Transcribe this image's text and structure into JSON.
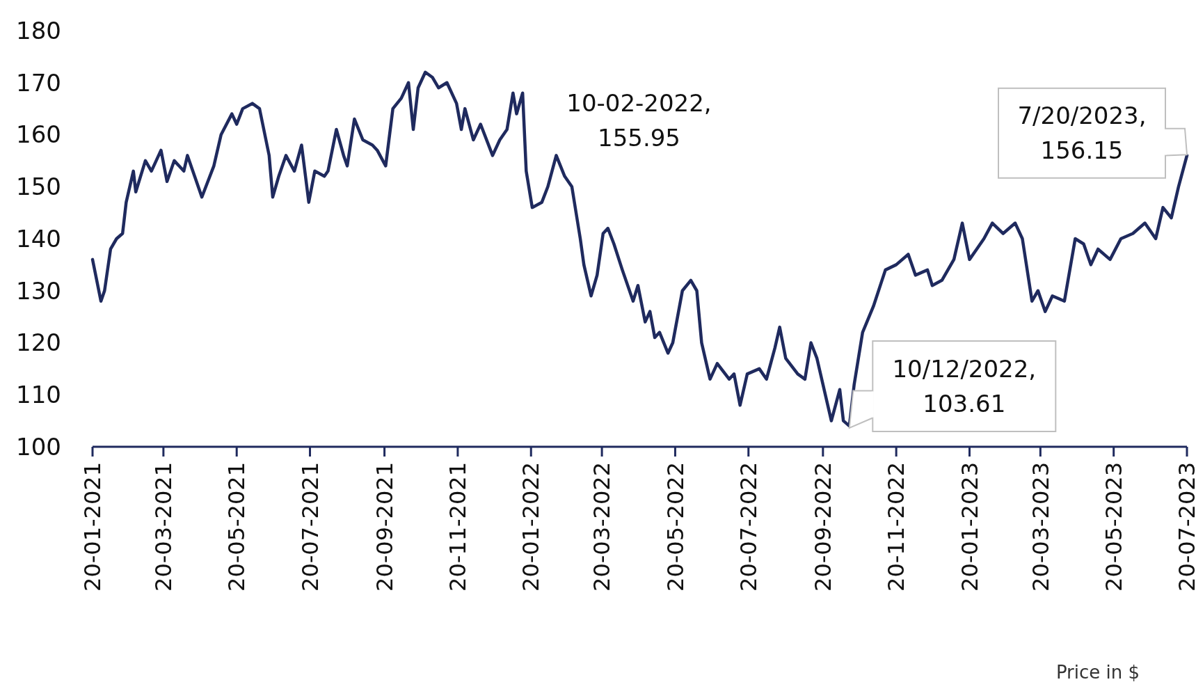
{
  "chart_data": {
    "type": "line",
    "xlim": [
      "2021-01-20",
      "2023-07-20"
    ],
    "ylim": [
      100,
      180
    ],
    "yticks": [
      100,
      110,
      120,
      130,
      140,
      150,
      160,
      170,
      180
    ],
    "xticks": [
      {
        "value": "2021-01-20",
        "label": "20-01-2021"
      },
      {
        "value": "2021-03-20",
        "label": "20-03-2021"
      },
      {
        "value": "2021-05-20",
        "label": "20-05-2021"
      },
      {
        "value": "2021-07-20",
        "label": "20-07-2021"
      },
      {
        "value": "2021-09-20",
        "label": "20-09-2021"
      },
      {
        "value": "2021-11-20",
        "label": "20-11-2021"
      },
      {
        "value": "2022-01-20",
        "label": "20-01-2022"
      },
      {
        "value": "2022-03-20",
        "label": "20-03-2022"
      },
      {
        "value": "2022-05-20",
        "label": "20-05-2022"
      },
      {
        "value": "2022-07-20",
        "label": "20-07-2022"
      },
      {
        "value": "2022-09-20",
        "label": "20-09-2022"
      },
      {
        "value": "2022-11-20",
        "label": "20-11-2022"
      },
      {
        "value": "2023-01-20",
        "label": "20-01-2023"
      },
      {
        "value": "2023-03-20",
        "label": "20-03-2023"
      },
      {
        "value": "2023-05-20",
        "label": "20-05-2023"
      },
      {
        "value": "2023-07-20",
        "label": "20-07-2023"
      }
    ],
    "grid": false,
    "marker": "none",
    "line_style": "solid",
    "x": [
      "2021-01-20",
      "2021-01-27",
      "2021-01-30",
      "2021-02-04",
      "2021-02-09",
      "2021-02-14",
      "2021-02-17",
      "2021-02-23",
      "2021-02-25",
      "2021-03-05",
      "2021-03-10",
      "2021-03-18",
      "2021-03-23",
      "2021-03-29",
      "2021-04-06",
      "2021-04-09",
      "2021-04-21",
      "2021-05-01",
      "2021-05-07",
      "2021-05-16",
      "2021-05-20",
      "2021-05-25",
      "2021-06-02",
      "2021-06-08",
      "2021-06-16",
      "2021-06-19",
      "2021-06-24",
      "2021-06-30",
      "2021-07-07",
      "2021-07-13",
      "2021-07-19",
      "2021-07-24",
      "2021-08-01",
      "2021-08-04",
      "2021-08-11",
      "2021-08-17",
      "2021-08-20",
      "2021-08-26",
      "2021-09-02",
      "2021-09-10",
      "2021-09-14",
      "2021-09-21",
      "2021-09-27",
      "2021-10-04",
      "2021-10-10",
      "2021-10-14",
      "2021-10-18",
      "2021-10-24",
      "2021-10-30",
      "2021-11-04",
      "2021-11-11",
      "2021-11-19",
      "2021-11-23",
      "2021-11-26",
      "2021-12-03",
      "2021-12-09",
      "2021-12-19",
      "2021-12-25",
      "2021-12-31",
      "2022-01-05",
      "2022-01-08",
      "2022-01-13",
      "2022-01-16",
      "2022-01-21",
      "2022-01-29",
      "2022-02-03",
      "2022-02-10",
      "2022-02-17",
      "2022-02-23",
      "2022-03-02",
      "2022-03-05",
      "2022-03-11",
      "2022-03-16",
      "2022-03-21",
      "2022-03-25",
      "2022-03-30",
      "2022-04-06",
      "2022-04-15",
      "2022-04-19",
      "2022-04-25",
      "2022-04-29",
      "2022-05-03",
      "2022-05-07",
      "2022-05-14",
      "2022-05-18",
      "2022-05-26",
      "2022-06-02",
      "2022-06-07",
      "2022-06-11",
      "2022-06-18",
      "2022-06-24",
      "2022-07-04",
      "2022-07-08",
      "2022-07-13",
      "2022-07-19",
      "2022-07-29",
      "2022-08-04",
      "2022-08-11",
      "2022-08-15",
      "2022-08-20",
      "2022-08-30",
      "2022-09-05",
      "2022-09-10",
      "2022-09-15",
      "2022-09-24",
      "2022-09-27",
      "2022-10-04",
      "2022-10-07",
      "2022-10-12",
      "2022-10-16",
      "2022-10-23",
      "2022-11-01",
      "2022-11-11",
      "2022-11-20",
      "2022-11-30",
      "2022-12-06",
      "2022-12-16",
      "2022-12-20",
      "2022-12-28",
      "2023-01-07",
      "2023-01-14",
      "2023-01-20",
      "2023-01-26",
      "2023-02-01",
      "2023-02-08",
      "2023-02-17",
      "2023-02-27",
      "2023-03-05",
      "2023-03-13",
      "2023-03-18",
      "2023-03-24",
      "2023-03-30",
      "2023-04-09",
      "2023-04-18",
      "2023-04-25",
      "2023-05-01",
      "2023-05-07",
      "2023-05-17",
      "2023-05-26",
      "2023-06-05",
      "2023-06-15",
      "2023-06-24",
      "2023-06-30",
      "2023-07-07",
      "2023-07-13",
      "2023-07-20"
    ],
    "series": [
      {
        "color": "#1f2a5e",
        "values": [
          136,
          128,
          130,
          138,
          140,
          141,
          147,
          153,
          149,
          155,
          153,
          157,
          151,
          155,
          153,
          156,
          148,
          154,
          160,
          164,
          162,
          165,
          166,
          165,
          156,
          148,
          152,
          156,
          153,
          158,
          147,
          153,
          152,
          153,
          161,
          156,
          154,
          163,
          159,
          158,
          157,
          154,
          165,
          167,
          170,
          161,
          169,
          172,
          171,
          169,
          170,
          166,
          161,
          165,
          159,
          162,
          156,
          159,
          161,
          168,
          164,
          168,
          153,
          146,
          147,
          150,
          156,
          152,
          150,
          140,
          135,
          129,
          133,
          141,
          142,
          139,
          134,
          128,
          131,
          124,
          126,
          121,
          122,
          118,
          120,
          130,
          132,
          130,
          120,
          113,
          116,
          113,
          114,
          108,
          114,
          115,
          113,
          119,
          123,
          117,
          114,
          113,
          120,
          117,
          108,
          105,
          111,
          105,
          104,
          112,
          122,
          127,
          134,
          135,
          137,
          133,
          134,
          131,
          132,
          136,
          143,
          136,
          138,
          140,
          143,
          141,
          143,
          140,
          128,
          130,
          126,
          129,
          128,
          140,
          139,
          135,
          138,
          136,
          140,
          141,
          143,
          140,
          146,
          144,
          150,
          156
        ]
      }
    ],
    "annotations": [
      {
        "text": "10-02-2022, 155.95",
        "x": "2022-02-10",
        "y": 155.95
      },
      {
        "text": "10/12/2022, 103.61",
        "x": "2022-10-12",
        "y": 103.61
      },
      {
        "text": "7/20/2023, 156.15",
        "x": "2023-07-20",
        "y": 156.15
      },
      "Price in $"
    ]
  }
}
